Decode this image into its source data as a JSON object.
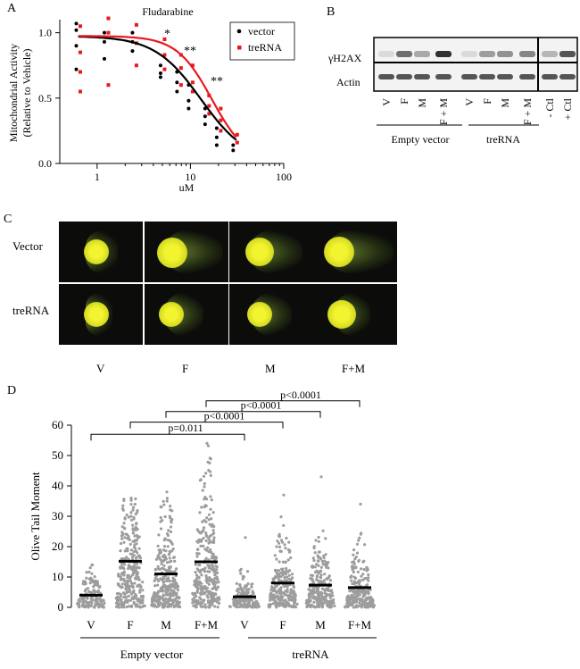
{
  "panels": {
    "a": "A",
    "b": "B",
    "c": "C",
    "d": "D"
  },
  "panel_a": {
    "title": "Fludarabine",
    "ylabel_line1": "Mitochondrial Activity",
    "ylabel_line2": "(Relative to Vehicle)",
    "xlabel": "uM",
    "yticks": [
      "0.0",
      "0.5",
      "1.0"
    ],
    "xticks": [
      "1",
      "10",
      "100"
    ],
    "legend": [
      "vector",
      "treRNA"
    ],
    "significance": [
      "*",
      "**",
      "**"
    ],
    "colors": {
      "vector": "#000000",
      "treRNA": "#e8191f"
    }
  },
  "panel_b": {
    "row_labels": [
      "γH2AX",
      "Actin"
    ],
    "lanes": [
      "V",
      "F",
      "M",
      "F + M",
      "V",
      "F",
      "M",
      "F + M",
      "- Ctl",
      "+ Ctl"
    ],
    "groups": [
      "Empty vector",
      "treRNA"
    ]
  },
  "panel_c": {
    "row_labels": [
      "Vector",
      "treRNA"
    ],
    "col_labels": [
      "V",
      "F",
      "M",
      "F+M"
    ]
  },
  "chart_data": {
    "type": "scatter",
    "ylabel": "Olive Tail Moment",
    "ylim": [
      0,
      60
    ],
    "yticks": [
      "0",
      "10",
      "20",
      "30",
      "40",
      "50",
      "60"
    ],
    "categories": [
      "V",
      "F",
      "M",
      "F+M",
      "V",
      "F",
      "M",
      "F+M"
    ],
    "groups": [
      "Empty vector",
      "treRNA"
    ],
    "medians": [
      4,
      15.2,
      11,
      15,
      3.5,
      8,
      7.3,
      6.5
    ],
    "max_values": [
      14,
      36,
      38,
      54,
      23,
      37,
      43,
      34
    ],
    "comparisons": [
      {
        "label": "p=0.011",
        "from": 0,
        "to": 4
      },
      {
        "label": "p<0.0001",
        "from": 1,
        "to": 5
      },
      {
        "label": "p<0.0001",
        "from": 2,
        "to": 6
      },
      {
        "label": "p<0.0001",
        "from": 3,
        "to": 7
      }
    ]
  }
}
